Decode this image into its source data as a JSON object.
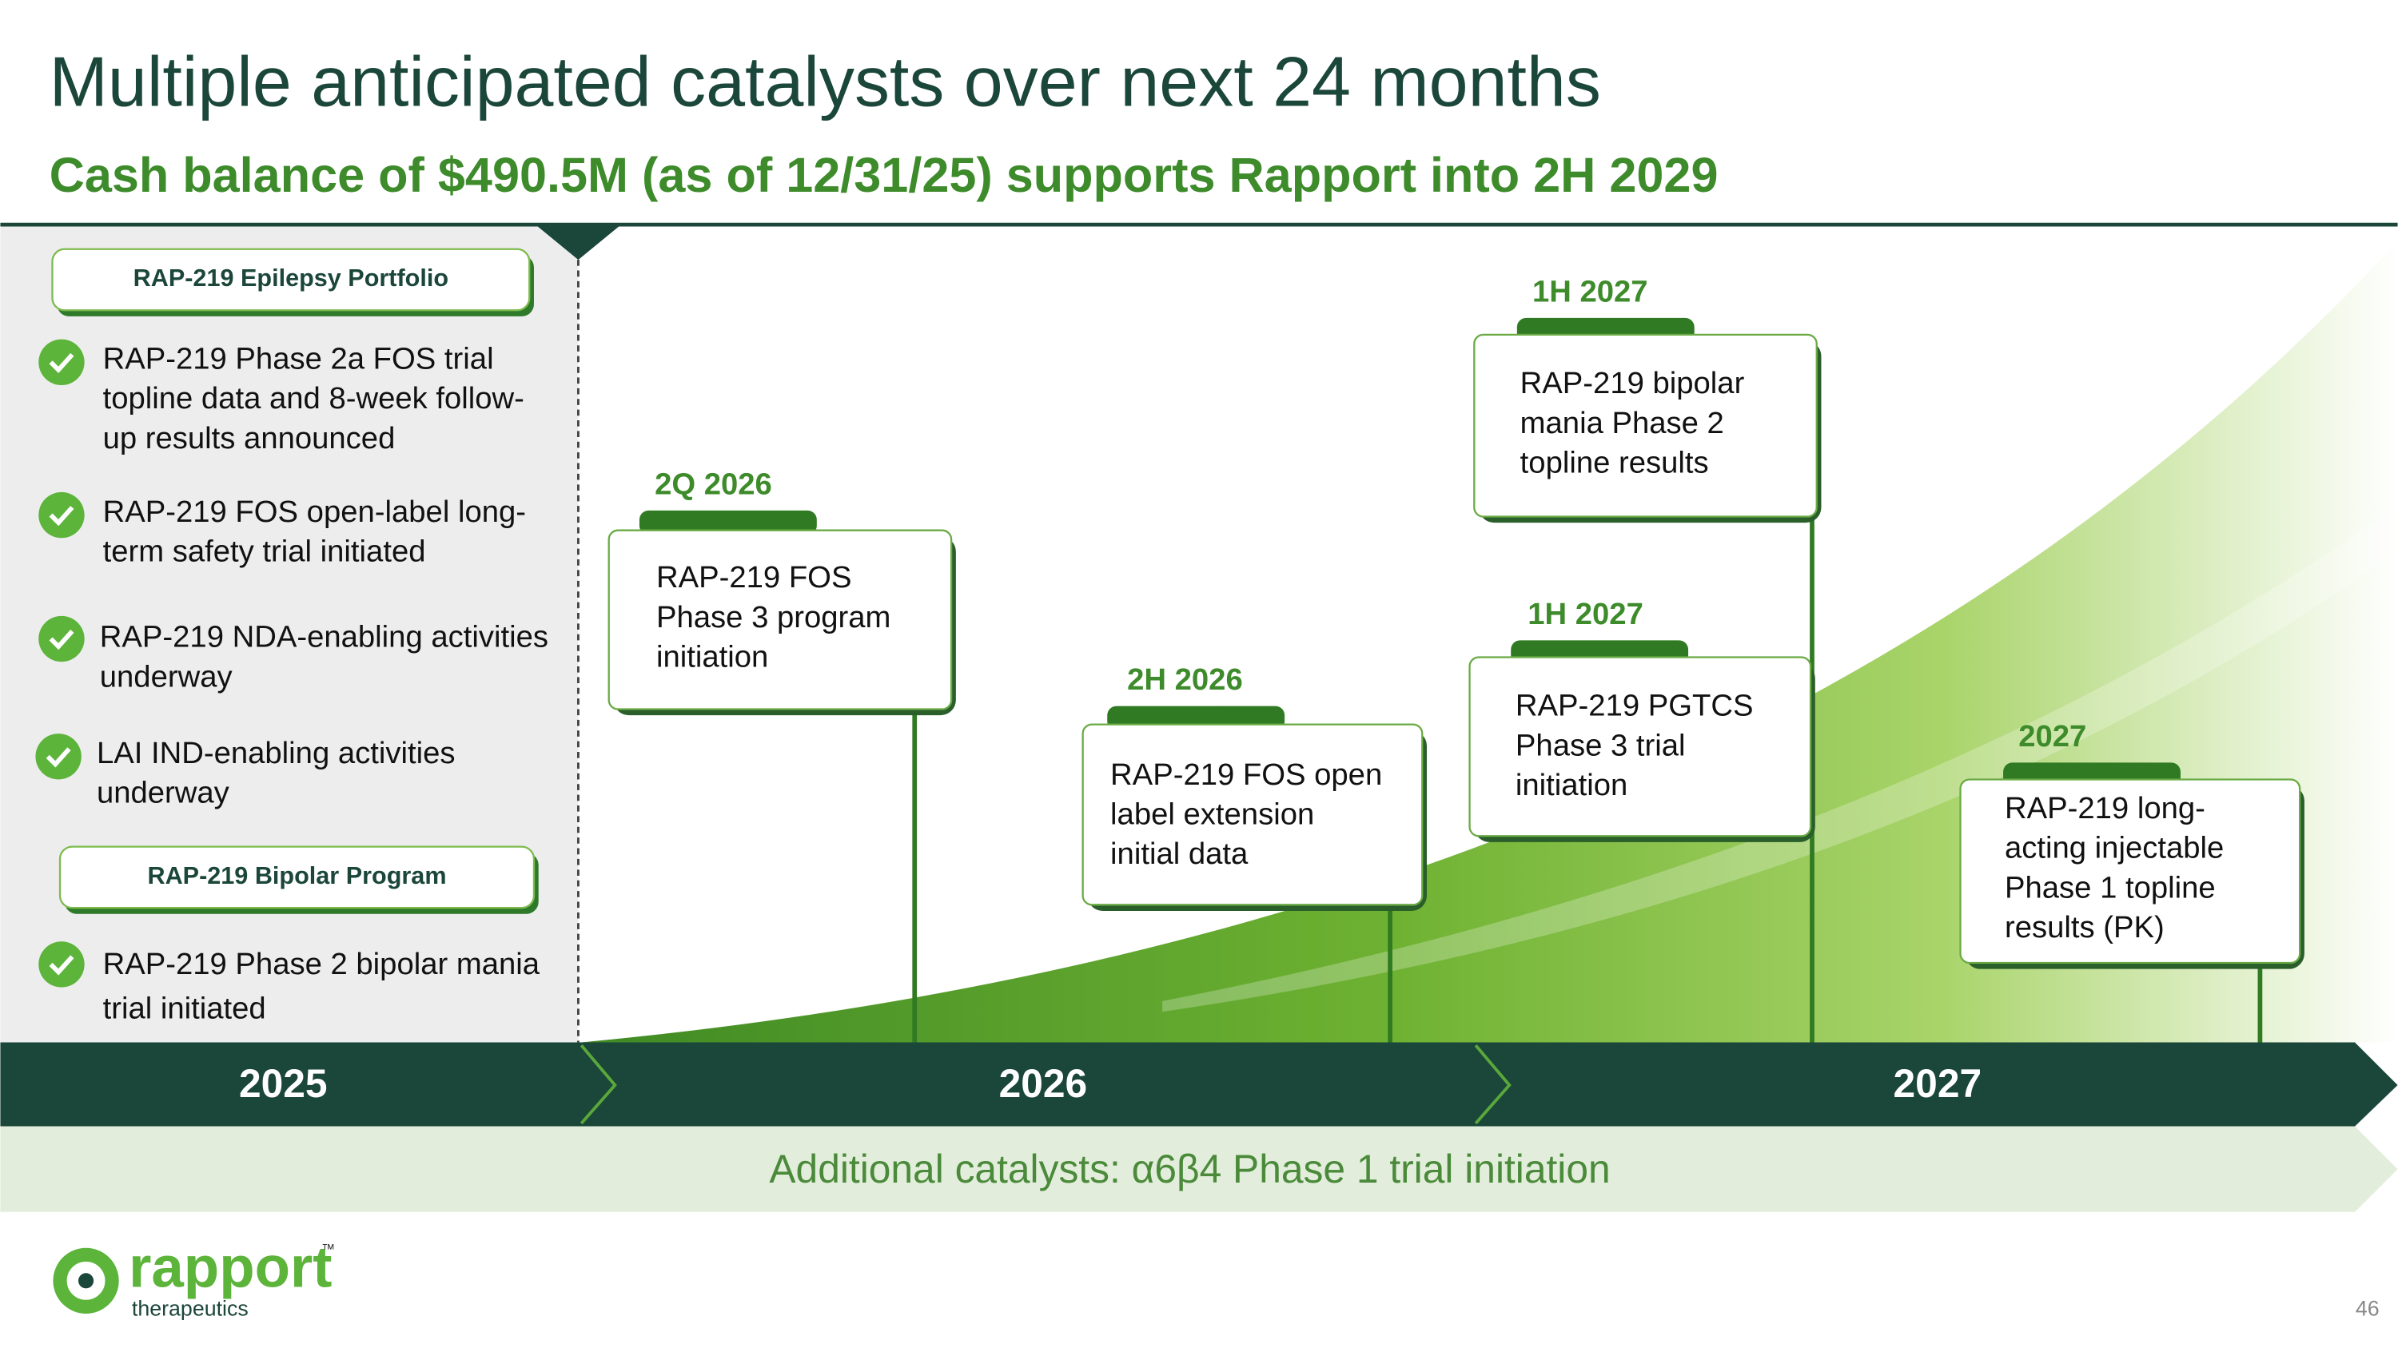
{
  "title": "Multiple anticipated catalysts over next 24 months",
  "subtitle": "Cash balance of $490.5M (as of 12/31/25) supports Rapport into 2H 2029",
  "epilepsy": {
    "heading": "RAP-219 Epilepsy Portfolio",
    "items": [
      [
        "RAP-219 Phase 2a FOS trial",
        "topline data and 8-week follow-",
        "up results announced"
      ],
      [
        "RAP-219 FOS open-label long-",
        "term safety trial initiated"
      ],
      [
        "RAP-219 NDA-enabling activities",
        "underway"
      ],
      [
        "LAI IND-enabling activities",
        "underway"
      ]
    ]
  },
  "bipolar": {
    "heading": "RAP-219 Bipolar Program",
    "items": [
      [
        "RAP-219 Phase 2 bipolar mania",
        "trial initiated"
      ]
    ]
  },
  "timeline": {
    "years": [
      "2025",
      "2026",
      "2027"
    ],
    "milestones": [
      {
        "date": "2Q 2026",
        "lines": [
          "RAP-219 FOS",
          "Phase 3 program",
          "initiation"
        ]
      },
      {
        "date": "2H 2026",
        "lines": [
          "RAP-219 FOS open",
          "label extension",
          "initial data"
        ]
      },
      {
        "date": "1H 2027",
        "lines": [
          "RAP-219 bipolar",
          "mania Phase 2",
          "topline results"
        ]
      },
      {
        "date": "1H 2027",
        "lines": [
          "RAP-219 PGTCS",
          "Phase 3 trial",
          "initiation"
        ]
      },
      {
        "date": "2027",
        "lines": [
          "RAP-219 long-",
          "acting injectable",
          "Phase 1 topline",
          "results (PK)"
        ]
      }
    ]
  },
  "additional": "Additional catalysts: α6β4 Phase 1 trial initiation",
  "logo": {
    "name": "rapport",
    "tm": "™",
    "sub": "therapeutics"
  },
  "page_number": "46"
}
